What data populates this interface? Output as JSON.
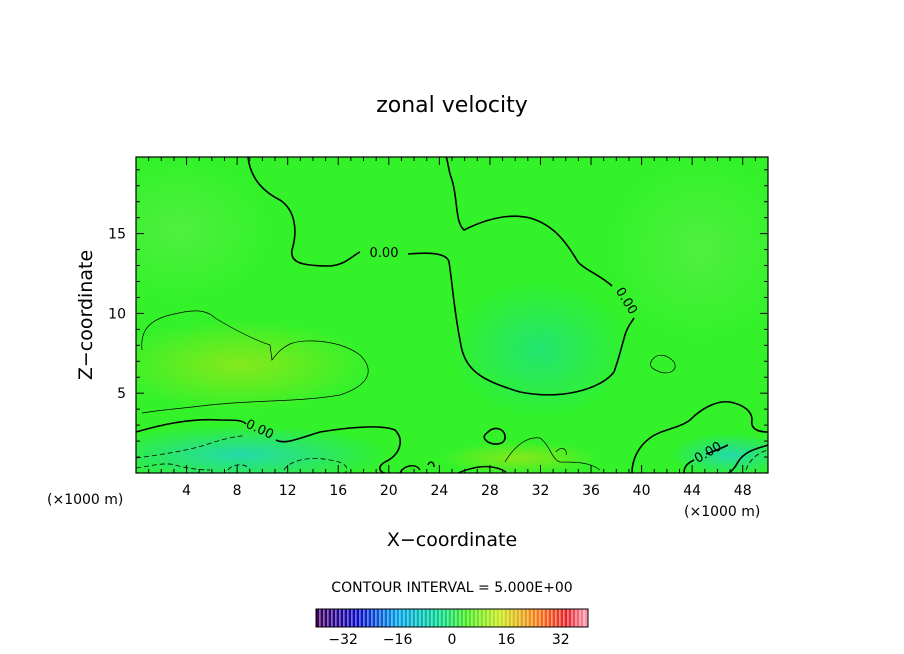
{
  "chart_data": {
    "type": "contour",
    "title": "zonal velocity",
    "xlabel": "X−coordinate",
    "ylabel": "Z−coordinate",
    "x_unit": "(×1000 m)",
    "x_unit_left": "(×1000 m)",
    "xlim": [
      0,
      50
    ],
    "ylim": [
      0,
      19.8
    ],
    "x_ticks": [
      4,
      8,
      12,
      16,
      20,
      24,
      28,
      32,
      36,
      40,
      44,
      48
    ],
    "y_ticks": [
      5,
      10,
      15
    ],
    "contour_labels": [
      "0.00",
      "0.00",
      "0.00",
      "0.00"
    ],
    "contour_interval_text": "CONTOUR INTERVAL = 5.000E+00",
    "colorbar": {
      "min": -40,
      "max": 40,
      "ticks": [
        -32,
        -16,
        0,
        16,
        32
      ],
      "tick_labels": [
        "−32",
        "−16",
        "0",
        "16",
        "32"
      ]
    },
    "colors": {
      "field_base": "#33f22a",
      "zero_line": "#000000"
    }
  }
}
